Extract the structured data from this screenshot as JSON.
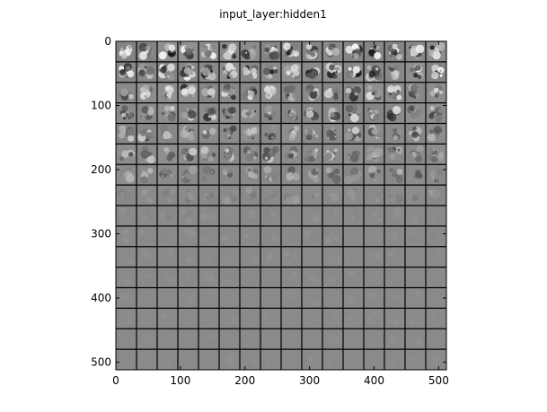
{
  "chart_data": {
    "type": "heatmap",
    "title": "input_layer:hidden1",
    "xlabel": "",
    "ylabel": "",
    "xlim": [
      0,
      512
    ],
    "ylim": [
      512,
      0
    ],
    "x_ticks": [
      0,
      100,
      200,
      300,
      400,
      500
    ],
    "y_ticks": [
      0,
      100,
      200,
      300,
      400,
      500
    ],
    "grid": {
      "rows": 16,
      "cols": 16,
      "tile_size": 32
    },
    "colormap": "gray",
    "tile_contrast_by_row": [
      1.0,
      0.95,
      0.8,
      0.75,
      0.6,
      0.55,
      0.45,
      0.15,
      0.06,
      0.05,
      0.04,
      0.04,
      0.03,
      0.03,
      0.03,
      0.03
    ],
    "background_gray": "#8c8c8c",
    "separator_color": "#000000"
  }
}
